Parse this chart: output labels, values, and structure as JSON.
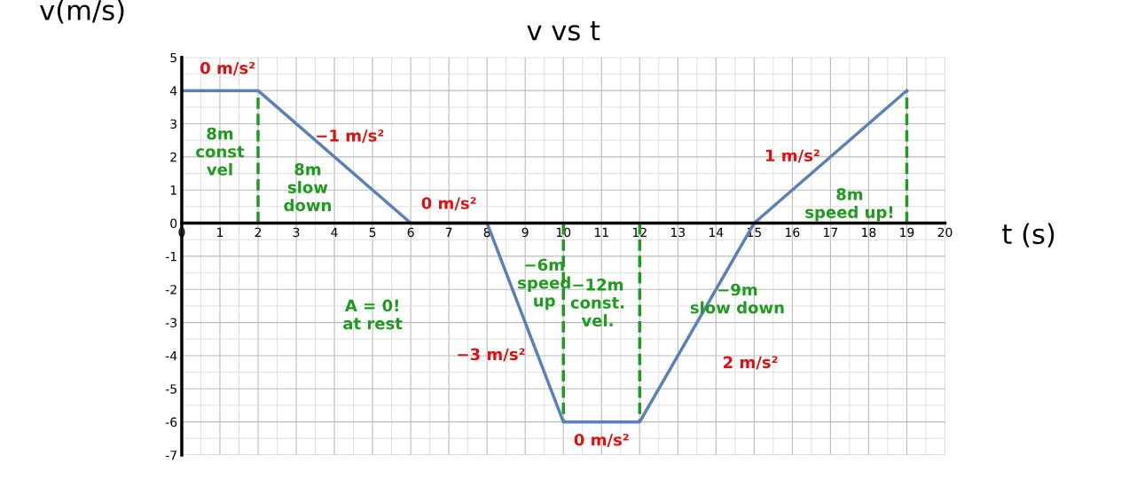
{
  "chart_data": {
    "type": "line",
    "title": "v vs t",
    "xlabel": "t (s)",
    "ylabel": "v(m/s)",
    "x": [
      0,
      2,
      6,
      8,
      10,
      12,
      15,
      19
    ],
    "series": [
      {
        "color": "#5b80b5",
        "values": [
          4,
          4,
          0,
          0,
          -6,
          -6,
          0,
          4
        ]
      }
    ],
    "xlim": [
      0,
      20
    ],
    "ylim": [
      -7,
      5
    ],
    "xticks": [
      0,
      1,
      2,
      3,
      4,
      5,
      6,
      7,
      8,
      9,
      10,
      11,
      12,
      13,
      14,
      15,
      16,
      17,
      18,
      19,
      20
    ],
    "yticks": [
      -7,
      -6,
      -5,
      -4,
      -3,
      -2,
      -1,
      0,
      1,
      2,
      3,
      4,
      5
    ],
    "grid": true,
    "marker": "none",
    "line_style": "solid",
    "ref_lines": [
      {
        "axis": "x",
        "value": 2,
        "color": "#1e9a1e",
        "line_style": "dashed"
      },
      {
        "axis": "x",
        "value": 10,
        "color": "#1e9a1e",
        "line_style": "dashed"
      },
      {
        "axis": "x",
        "value": 12,
        "color": "#1e9a1e",
        "line_style": "dashed"
      },
      {
        "axis": "x",
        "value": 19,
        "color": "#1e9a1e",
        "line_style": "dashed"
      }
    ],
    "annotations": [
      "0 m/s²",
      "−1 m/s²",
      "8m\nconst\nvel",
      "8m\nslow\ndown",
      "0 m/s²",
      "A = 0!\nat rest",
      "−3 m/s²",
      "−6m\nspeed\nup",
      "−12m\nconst.\nvel.",
      "−9m\nslow down",
      "2 m/s²",
      "0 m/s²",
      "1 m/s²",
      "8m\nspeed up!"
    ]
  }
}
